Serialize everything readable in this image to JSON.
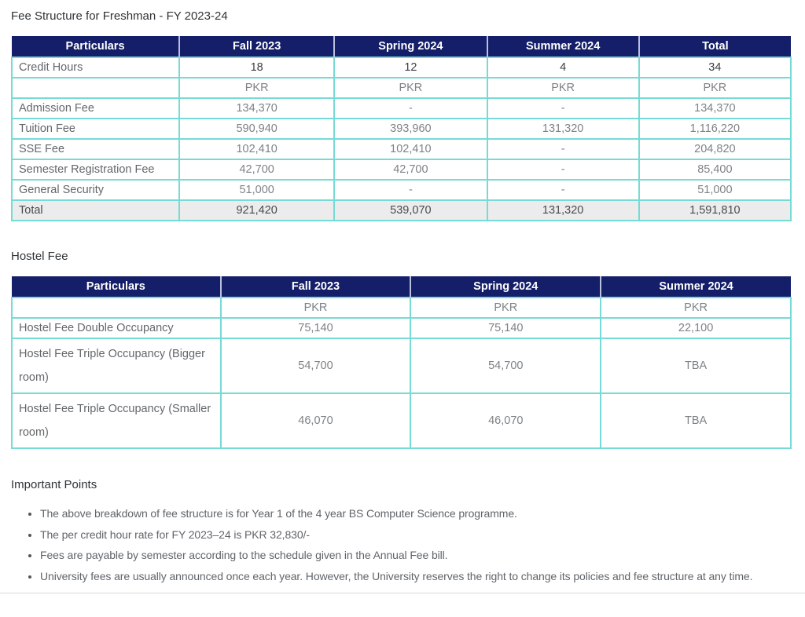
{
  "page": {
    "title": "Fee Structure for Freshman - FY 2023-24",
    "hostel_heading": "Hostel Fee",
    "points_heading": "Important Points",
    "bullets": [
      "The above breakdown of fee structure is for Year 1 of the 4 year BS Computer Science programme.",
      "The per credit hour rate for FY 2023–24 is PKR 32,830/-",
      "Fees are payable by semester according to the schedule given in the Annual Fee bill.",
      "University fees are usually announced once each year. However, the University reserves the right to change its policies and fee structure at any time."
    ]
  },
  "colors": {
    "header_bg": "#141e69",
    "header_text": "#ffffff",
    "table_border": "#76dbd5",
    "total_row_bg": "#ececec"
  },
  "fee_table": {
    "columns": [
      "Particulars",
      "Fall 2023",
      "Spring 2024",
      "Summer 2024",
      "Total"
    ],
    "rows": [
      {
        "label": "Credit Hours",
        "values": [
          "18",
          "12",
          "4",
          "34"
        ],
        "style": "credit"
      },
      {
        "label": "",
        "values": [
          "PKR",
          "PKR",
          "PKR",
          "PKR"
        ],
        "style": "currency"
      },
      {
        "label": "Admission Fee",
        "values": [
          "134,370",
          "-",
          "-",
          "134,370"
        ],
        "style": ""
      },
      {
        "label": "Tuition Fee",
        "values": [
          "590,940",
          "393,960",
          "131,320",
          "1,116,220"
        ],
        "style": ""
      },
      {
        "label": "SSE Fee",
        "values": [
          "102,410",
          "102,410",
          "-",
          "204,820"
        ],
        "style": ""
      },
      {
        "label": "Semester Registration Fee",
        "values": [
          "42,700",
          "42,700",
          "-",
          "85,400"
        ],
        "style": ""
      },
      {
        "label": "General Security",
        "values": [
          "51,000",
          "-",
          "-",
          "51,000"
        ],
        "style": ""
      },
      {
        "label": "Total",
        "values": [
          "921,420",
          "539,070",
          "131,320",
          "1,591,810"
        ],
        "style": "total"
      }
    ]
  },
  "hostel_table": {
    "columns": [
      "Particulars",
      "Fall 2023",
      "Spring 2024",
      "Summer 2024"
    ],
    "rows": [
      {
        "label": "",
        "values": [
          "PKR",
          "PKR",
          "PKR"
        ],
        "style": "currency"
      },
      {
        "label": "Hostel Fee Double Occupancy",
        "values": [
          "75,140",
          "75,140",
          "22,100"
        ],
        "style": ""
      },
      {
        "label": "Hostel Fee Triple Occupancy (Bigger room)",
        "values": [
          "54,700",
          "54,700",
          "TBA"
        ],
        "style": "tall"
      },
      {
        "label": "Hostel Fee Triple Occupancy (Smaller room)",
        "values": [
          "46,070",
          "46,070",
          "TBA"
        ],
        "style": "tall"
      }
    ]
  }
}
